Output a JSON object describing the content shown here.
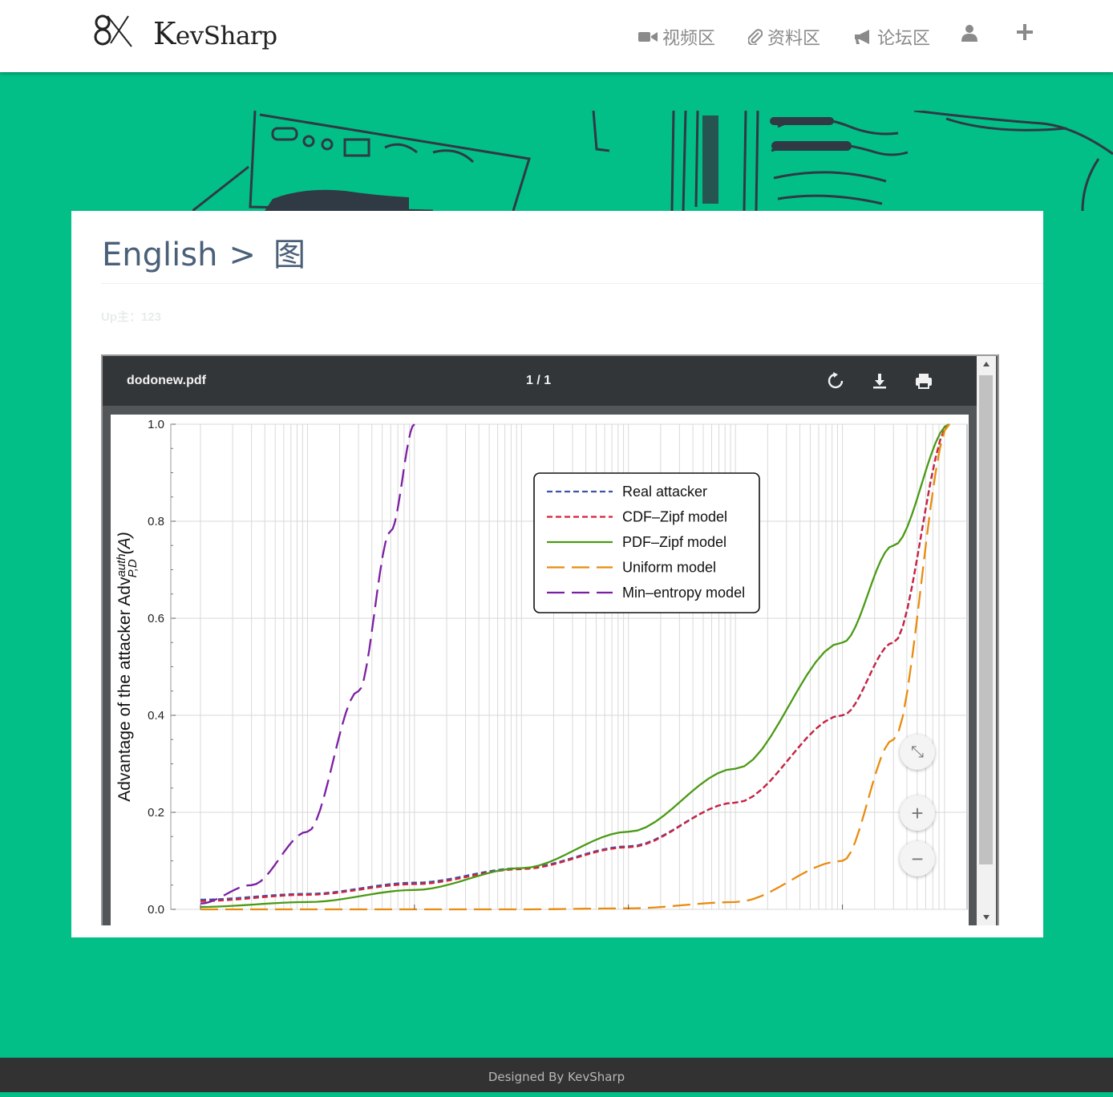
{
  "brand": {
    "name_initial": "K",
    "name_rest": "evSharp"
  },
  "nav": {
    "video": "视频区",
    "resources": "资料区",
    "forum": "论坛区"
  },
  "breadcrumb": {
    "parent": "English",
    "separator": ">",
    "current": "图"
  },
  "uploader": "Up主：123",
  "pdf": {
    "file_name": "dodonew.pdf",
    "page_indicator": "1 / 1"
  },
  "zoom": {
    "fit": "⤡",
    "in": "+",
    "out": "−"
  },
  "footer": "Designed By KevSharp",
  "colors": {
    "accent": "#02bf87",
    "toolbar": "#323639",
    "footer": "#323232"
  },
  "chart_data": {
    "type": "line",
    "ylabel": "Advantage of the attacker Adv^auth_{P,D}(A)",
    "ylim": [
      0,
      1.0
    ],
    "yticks": [
      "0.0",
      "0.2",
      "0.4",
      "0.6",
      "0.8",
      "1.0"
    ],
    "x_scale": "log",
    "xlim": [
      1,
      10000000
    ],
    "series": [
      {
        "name": "Real attacker",
        "color": "#3b55a8",
        "dash": "short",
        "x": [
          1,
          10,
          100,
          1000,
          10000,
          100000,
          1000000,
          3000000,
          10000000
        ],
        "y": [
          0.02,
          0.032,
          0.055,
          0.085,
          0.13,
          0.22,
          0.4,
          0.55,
          1.0
        ]
      },
      {
        "name": "CDF–Zipf model",
        "color": "#d6203a",
        "dash": "short",
        "x": [
          1,
          10,
          100,
          1000,
          10000,
          100000,
          1000000,
          3000000,
          10000000
        ],
        "y": [
          0.017,
          0.03,
          0.052,
          0.083,
          0.128,
          0.22,
          0.4,
          0.55,
          1.0
        ]
      },
      {
        "name": "PDF–Zipf model",
        "color": "#4a9a14",
        "dash": "solid",
        "x": [
          1,
          10,
          100,
          1000,
          10000,
          100000,
          1000000,
          3000000,
          10000000
        ],
        "y": [
          0.005,
          0.015,
          0.04,
          0.085,
          0.16,
          0.29,
          0.55,
          0.75,
          1.0
        ]
      },
      {
        "name": "Uniform model",
        "color": "#e88c0f",
        "dash": "long",
        "x": [
          1,
          10,
          100,
          1000,
          10000,
          100000,
          1000000,
          3000000,
          10000000
        ],
        "y": [
          0,
          0,
          0,
          0,
          0.002,
          0.015,
          0.1,
          0.35,
          1.0
        ]
      },
      {
        "name": "Min–entropy model",
        "color": "#7b1fa2",
        "dash": "long",
        "x": [
          1,
          3,
          10,
          30,
          60,
          100
        ],
        "y": [
          0.012,
          0.05,
          0.16,
          0.45,
          0.78,
          1.0
        ]
      }
    ],
    "legend": "upper-center"
  }
}
